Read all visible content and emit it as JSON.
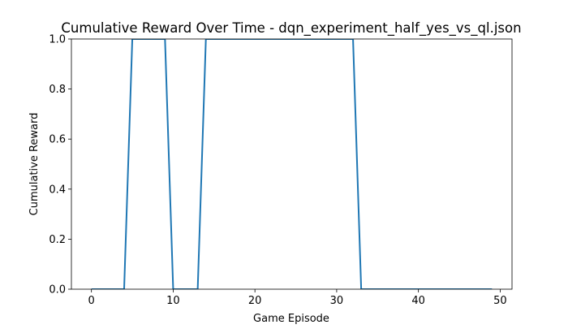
{
  "chart_data": {
    "type": "line",
    "title": "Cumulative Reward Over Time - dqn_experiment_half_yes_vs_ql.json",
    "xlabel": "Game Episode",
    "ylabel": "Cumulative Reward",
    "xlim": [
      -2.45,
      51.45
    ],
    "ylim": [
      0,
      1
    ],
    "xticks": [
      0,
      10,
      20,
      30,
      40,
      50
    ],
    "xtick_labels": [
      "0",
      "10",
      "20",
      "30",
      "40",
      "50"
    ],
    "yticks": [
      0,
      0.2,
      0.4,
      0.6,
      0.8,
      1
    ],
    "ytick_labels": [
      "0.0",
      "0.2",
      "0.4",
      "0.6",
      "0.8",
      "1.0"
    ],
    "grid": false,
    "series": [
      {
        "color": "#1f77b4",
        "x": [
          0,
          1,
          2,
          3,
          4,
          5,
          6,
          7,
          8,
          9,
          10,
          11,
          12,
          13,
          14,
          15,
          16,
          17,
          18,
          19,
          20,
          21,
          22,
          23,
          24,
          25,
          26,
          27,
          28,
          29,
          30,
          31,
          32,
          33,
          34,
          35,
          36,
          37,
          38,
          39,
          40,
          41,
          42,
          43,
          44,
          45,
          46,
          47,
          48,
          49
        ],
        "values": [
          0,
          0,
          0,
          0,
          0,
          1,
          1,
          1,
          1,
          1,
          0,
          0,
          0,
          0,
          1,
          1,
          1,
          1,
          1,
          1,
          1,
          1,
          1,
          1,
          1,
          1,
          1,
          1,
          1,
          1,
          1,
          1,
          1,
          0,
          0,
          0,
          0,
          0,
          0,
          0,
          0,
          0,
          0,
          0,
          0,
          0,
          0,
          0,
          0,
          0
        ]
      }
    ]
  }
}
